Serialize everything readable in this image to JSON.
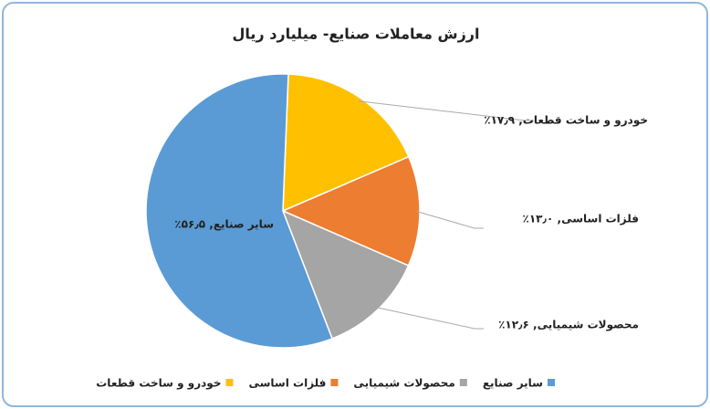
{
  "chart_data": {
    "type": "pie",
    "title": "ارزش معاملات صنایع- میلیارد ریال",
    "categories": [
      "خودرو و ساخت قطعات",
      "فلزات اساسی",
      "محصولات شیمیایی",
      "سایر صنایع"
    ],
    "values": [
      17.9,
      13.0,
      12.6,
      56.5
    ],
    "value_labels": [
      "خودرو و ساخت قطعات, ۱۷٫۹٪",
      "فلزات اساسی, ۱۳٫۰٪",
      "محصولات شیمیایی, ۱۲٫۶٪",
      "سایر صنایع, ۵۶٫۵٪"
    ],
    "colors": [
      "#FFC000",
      "#ED7D31",
      "#A5A5A5",
      "#5B9BD5"
    ],
    "legend": "bottom"
  }
}
